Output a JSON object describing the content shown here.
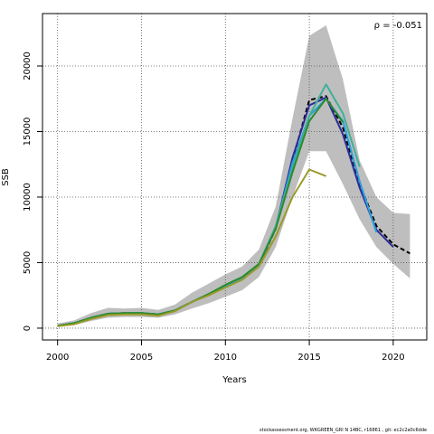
{
  "chart_data": {
    "type": "line",
    "xlabel": "Years",
    "ylabel": "SSB",
    "xlim": [
      1999.1,
      2022.0
    ],
    "ylim": [
      -900,
      24000
    ],
    "x_ticks": [
      2000,
      2005,
      2010,
      2015,
      2020
    ],
    "y_ticks": [
      0,
      5000,
      10000,
      15000,
      20000
    ],
    "grid": "dotted",
    "annotation": "ρ = -0.051",
    "confidence_band": {
      "x": [
        2000,
        2001,
        2002,
        2003,
        2004,
        2005,
        2006,
        2007,
        2008,
        2009,
        2010,
        2011,
        2012,
        2013,
        2014,
        2015,
        2016,
        2017,
        2018,
        2019,
        2020,
        2021
      ],
      "lower": [
        100,
        250,
        550,
        800,
        850,
        850,
        800,
        1050,
        1500,
        1900,
        2400,
        2900,
        3900,
        6200,
        10000,
        13500,
        13500,
        11000,
        8300,
        6200,
        4900,
        3800
      ],
      "upper": [
        350,
        600,
        1150,
        1550,
        1500,
        1550,
        1400,
        1800,
        2700,
        3400,
        4100,
        4700,
        6000,
        9300,
        16000,
        22300,
        23100,
        19000,
        12800,
        10000,
        8800,
        8700
      ],
      "color": "#bebebe"
    },
    "series": [
      {
        "color": "#000000",
        "dashed": true,
        "x": [
          2000,
          2001,
          2002,
          2003,
          2004,
          2005,
          2006,
          2007,
          2008,
          2009,
          2010,
          2011,
          2012,
          2013,
          2014,
          2015,
          2016,
          2017,
          2018,
          2019,
          2020,
          2021
        ],
        "values": [
          180,
          380,
          800,
          1100,
          1150,
          1150,
          1050,
          1350,
          2000,
          2600,
          3200,
          3700,
          4800,
          7600,
          12800,
          17400,
          17700,
          15300,
          11000,
          7800,
          6400,
          5700
        ]
      },
      {
        "color": "#2d2d9a",
        "x": [
          2000,
          2001,
          2002,
          2003,
          2004,
          2005,
          2006,
          2007,
          2008,
          2009,
          2010,
          2011,
          2012,
          2013,
          2014,
          2015,
          2016,
          2017,
          2018,
          2019,
          2020
        ],
        "values": [
          180,
          380,
          800,
          1100,
          1150,
          1150,
          1050,
          1350,
          2000,
          2600,
          3200,
          3800,
          4800,
          7700,
          13000,
          17000,
          17600,
          14800,
          10700,
          7500,
          6200
        ]
      },
      {
        "color": "#2aa0dc",
        "x": [
          2000,
          2001,
          2002,
          2003,
          2004,
          2005,
          2006,
          2007,
          2008,
          2009,
          2010,
          2011,
          2012,
          2013,
          2014,
          2015,
          2016,
          2017,
          2018,
          2019
        ],
        "values": [
          180,
          380,
          800,
          1100,
          1150,
          1150,
          1050,
          1350,
          2000,
          2600,
          3200,
          3800,
          4800,
          7700,
          12600,
          16200,
          17500,
          15800,
          11200,
          7300
        ]
      },
      {
        "color": "#3fb09a",
        "x": [
          2000,
          2001,
          2002,
          2003,
          2004,
          2005,
          2006,
          2007,
          2008,
          2009,
          2010,
          2011,
          2012,
          2013,
          2014,
          2015,
          2016,
          2017,
          2018
        ],
        "values": [
          180,
          380,
          800,
          1100,
          1150,
          1150,
          1050,
          1350,
          2000,
          2600,
          3300,
          3900,
          4900,
          7800,
          12200,
          16200,
          18600,
          16400,
          12300
        ]
      },
      {
        "color": "#2c8a2c",
        "x": [
          2000,
          2001,
          2002,
          2003,
          2004,
          2005,
          2006,
          2007,
          2008,
          2009,
          2010,
          2011,
          2012,
          2013,
          2014,
          2015,
          2016,
          2017
        ],
        "values": [
          180,
          380,
          800,
          1100,
          1150,
          1150,
          1050,
          1350,
          2000,
          2600,
          3300,
          3900,
          4900,
          7600,
          11900,
          15800,
          17500,
          15700
        ]
      },
      {
        "color": "#9a9a2a",
        "x": [
          2000,
          2001,
          2002,
          2003,
          2004,
          2005,
          2006,
          2007,
          2008,
          2009,
          2010,
          2011,
          2012,
          2013,
          2014,
          2015,
          2016
        ],
        "values": [
          150,
          300,
          700,
          1000,
          1050,
          1050,
          950,
          1300,
          2000,
          2500,
          3100,
          3700,
          4700,
          7000,
          10000,
          12100,
          11600
        ]
      }
    ]
  },
  "footer": "stockassessment.org, WKGREEN_GRI N 14BC, r16861 , git: ec2c2a0c6dde"
}
